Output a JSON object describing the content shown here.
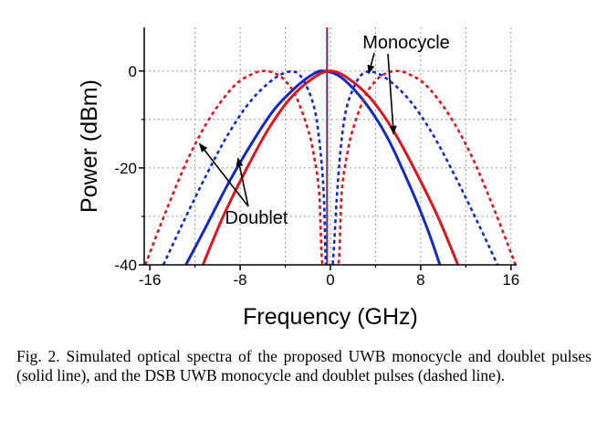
{
  "chart_data": {
    "type": "line",
    "xlabel": "Frequency (GHz)",
    "ylabel": "Power (dBm)",
    "xlim": [
      -16.5,
      16.5
    ],
    "ylim": [
      -40,
      9
    ],
    "xticks": [
      "-16",
      "-8",
      "0",
      "8",
      "16"
    ],
    "xtick_values": [
      -16,
      -8,
      0,
      8,
      16
    ],
    "yticks": [
      "0",
      "-20",
      "-40"
    ],
    "ytick_values": [
      0,
      -20,
      -40
    ],
    "grid": true,
    "annotations": [
      {
        "text": "Monocycle",
        "points_to": [
          [
            3.4,
            -0.5
          ],
          [
            5.6,
            -13
          ]
        ]
      },
      {
        "text": "Doublet",
        "points_to": [
          [
            -11.6,
            -15
          ],
          [
            -8.2,
            -18
          ]
        ]
      }
    ],
    "carrier_line": {
      "x": -0.3,
      "color": "#1f3fd0"
    },
    "series": [
      {
        "label": "monocycle solid",
        "color": "#1428c8",
        "dash": false,
        "x": [
          -12.8,
          -11,
          -9,
          -7,
          -5,
          -3,
          -1.5,
          -0.5,
          1,
          3,
          5,
          7,
          8.5,
          9.7
        ],
        "y": [
          -40,
          -32,
          -23,
          -15,
          -8,
          -3.2,
          -0.6,
          0,
          -1.4,
          -6.3,
          -13.5,
          -23.5,
          -32,
          -40
        ]
      },
      {
        "label": "doublet solid",
        "color": "#e0141e",
        "dash": false,
        "x": [
          -11.3,
          -9.5,
          -7.5,
          -5.5,
          -3.5,
          -1.5,
          0,
          1.5,
          3.5,
          5.5,
          7.5,
          9.5,
          11.3
        ],
        "y": [
          -40,
          -30,
          -20.5,
          -12,
          -5.5,
          -1.4,
          0,
          -1.4,
          -5.5,
          -12,
          -20.5,
          -30,
          -40
        ]
      },
      {
        "label": "monocycle dashed",
        "color": "#1428c8",
        "dash": true,
        "x": [
          -14.8,
          -13,
          -11,
          -9,
          -7,
          -5,
          -3.5,
          -2.5,
          -1.5,
          -1,
          -0.6,
          -0.4,
          -0.2,
          0,
          0.2,
          0.6,
          1,
          1.5,
          2.5,
          3.5,
          5,
          7,
          9,
          11,
          13,
          14.8
        ],
        "y": [
          -40,
          -31,
          -21.5,
          -12.8,
          -6,
          -1.6,
          -0.1,
          -1.5,
          -7,
          -14,
          -25,
          -40,
          -40,
          -40,
          -40,
          -25,
          -14,
          -7,
          -1.5,
          -0.1,
          -1.6,
          -6,
          -12.8,
          -21.5,
          -31,
          -40
        ]
      },
      {
        "label": "doublet dashed",
        "color": "#e0141e",
        "dash": true,
        "x": [
          -16.4,
          -14.5,
          -12.5,
          -10.5,
          -8.5,
          -7,
          -6,
          -5,
          -4,
          -3,
          -2,
          -1.5,
          -1,
          -0.7,
          0,
          0.7,
          1,
          1.5,
          2,
          3,
          4,
          5,
          6,
          7,
          8.5,
          10.5,
          12.5,
          14.5,
          16.4
        ],
        "y": [
          -40,
          -28.5,
          -17.5,
          -9,
          -3,
          -0.7,
          0,
          -0.4,
          -2,
          -5.5,
          -12,
          -17,
          -25,
          -40,
          -40,
          -40,
          -25,
          -17,
          -12,
          -5.5,
          -2,
          -0.4,
          0,
          -0.7,
          -3,
          -9,
          -17.5,
          -28.5,
          -40
        ]
      }
    ]
  },
  "caption": "Fig. 2.   Simulated optical spectra of the proposed UWB monocycle and doublet pulses (solid line), and the DSB UWB monocycle and doublet pulses (dashed line)."
}
